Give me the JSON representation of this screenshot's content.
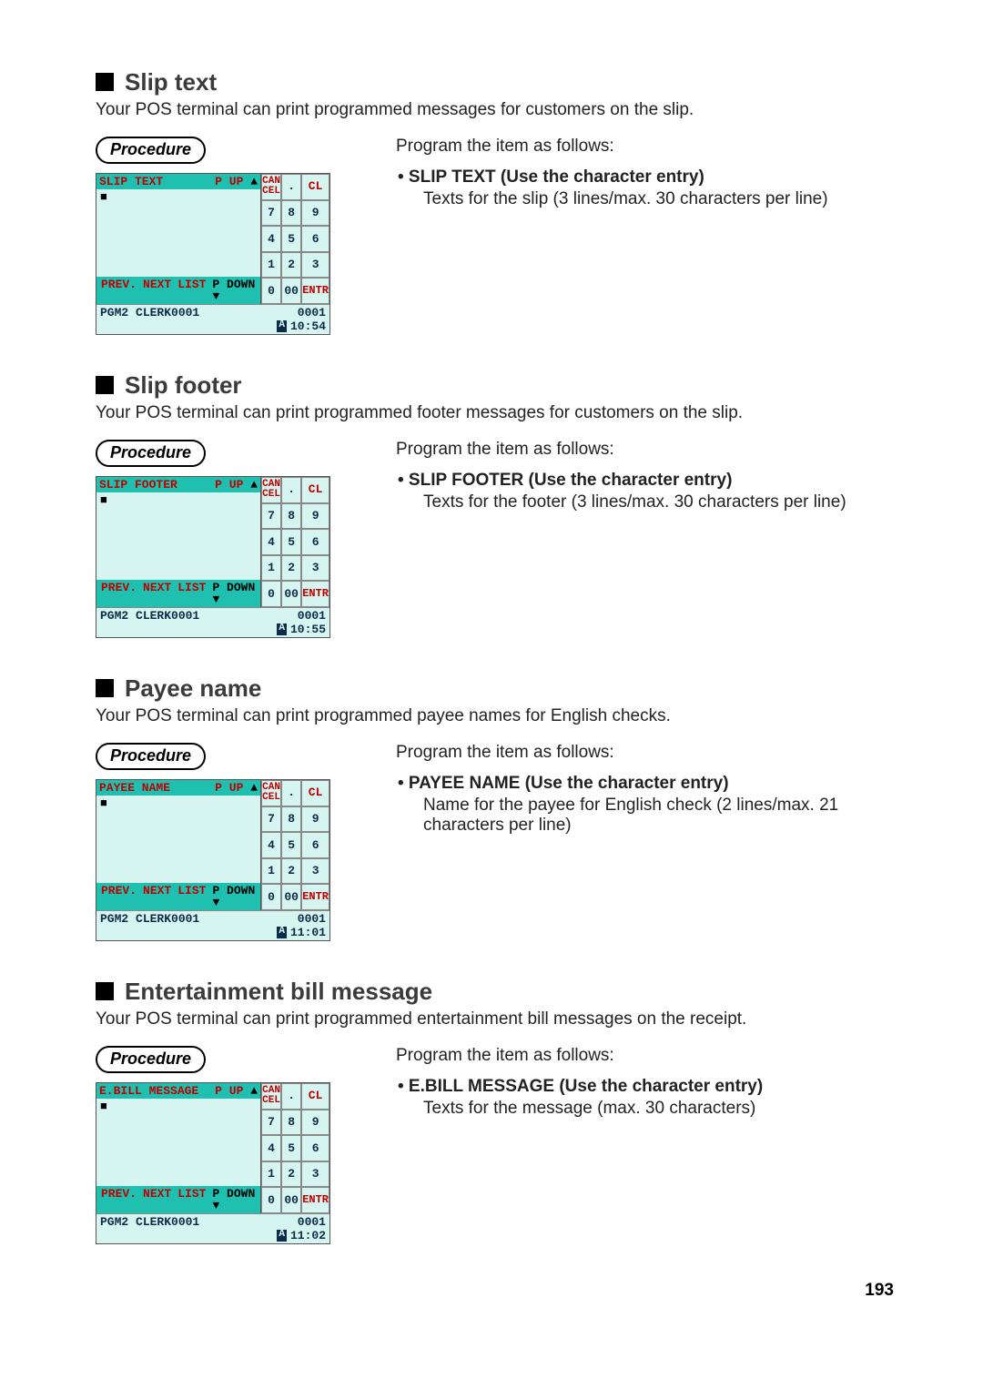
{
  "page_number": "193",
  "common": {
    "procedure_label": "Procedure",
    "keypad": {
      "cancel": "CAN\\nCEL",
      "dot": ".",
      "cl": "CL",
      "k7": "7",
      "k8": "8",
      "k9": "9",
      "k4": "4",
      "k5": "5",
      "k6": "6",
      "k1": "1",
      "k2": "2",
      "k3": "3",
      "k0": "0",
      "k00": "00",
      "entr": "ENTR"
    },
    "nav": {
      "prev": "PREV.",
      "next": "NEXT",
      "list": "LIST",
      "pdown": "P DOWN",
      "pdown_arrow": "▼",
      "pup": "P UP",
      "pup_arrow": "▲"
    },
    "status_mode": "PGM2",
    "status_clerk": "CLERK0001",
    "status_code": "0001",
    "status_a": "A",
    "cursor": "■",
    "lead": "Program the item as follows:"
  },
  "sections": [
    {
      "key": "slip_text",
      "heading": "Slip text",
      "intro": "Your POS terminal can print programmed messages for customers on the slip.",
      "term_title": "SLIP TEXT",
      "time": "10:54",
      "bullet": "• SLIP TEXT (Use the character entry)",
      "sub": "Texts for the slip (3 lines/max. 30 characters per line)"
    },
    {
      "key": "slip_footer",
      "heading": "Slip footer",
      "intro": "Your POS terminal can print programmed footer messages for customers on the slip.",
      "term_title": "SLIP FOOTER",
      "time": "10:55",
      "bullet": "• SLIP FOOTER (Use the character entry)",
      "sub": "Texts for the footer (3 lines/max. 30 characters per line)"
    },
    {
      "key": "payee_name",
      "heading": "Payee name",
      "intro": "Your POS terminal can print programmed payee names for English checks.",
      "term_title": "PAYEE NAME",
      "time": "11:01",
      "bullet": "• PAYEE NAME (Use the character entry)",
      "sub": "Name for the payee for English check (2 lines/max. 21 characters per line)"
    },
    {
      "key": "ebill",
      "heading": "Entertainment bill message",
      "intro": "Your POS terminal can print programmed entertainment bill messages on the receipt.",
      "term_title": "E.BILL MESSAGE",
      "time": "11:02",
      "bullet": "• E.BILL MESSAGE (Use the character entry)",
      "sub": "Texts for the message (max. 30 characters)"
    }
  ]
}
